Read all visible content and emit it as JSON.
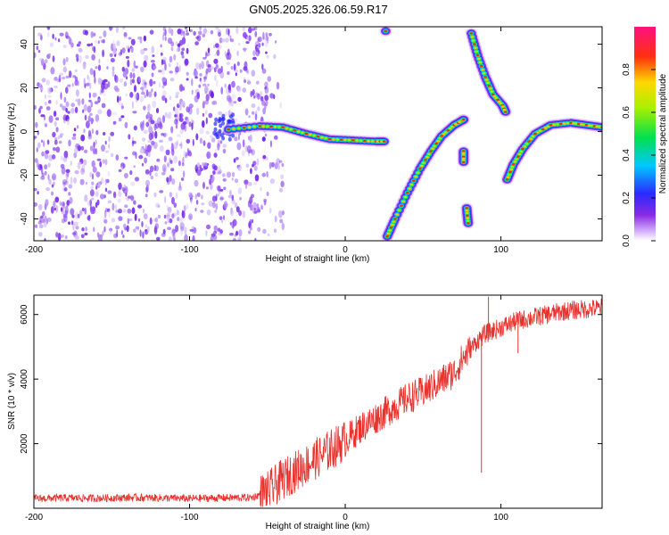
{
  "title": "GN05.2025.326.06.59.R17",
  "colors": {
    "snr_line": "#e8322e",
    "noise_purple": "#7a2cf0",
    "background": "#ffffff"
  },
  "chart_data": [
    {
      "type": "heatmap",
      "name": "spectrogram",
      "xlabel": "Height of straight line (km)",
      "ylabel": "Frequency (Hz)",
      "xlim": [
        -200,
        165
      ],
      "ylim": [
        -50,
        48
      ],
      "x_ticks": [
        -200,
        -100,
        0,
        100
      ],
      "y_ticks": [
        -40,
        -20,
        0,
        20,
        40
      ],
      "grid": false,
      "colorbar": {
        "label": "Normalized spectral amplitude",
        "range": [
          0.0,
          1.0
        ],
        "ticks": [
          "0.0",
          "0.2",
          "0.4",
          "0.6",
          "0.8"
        ],
        "colormap": "rainbow (purple-blue-cyan-green-yellow-red-magenta)"
      },
      "noise_region_x": [
        -200,
        -50
      ],
      "traces": [
        {
          "name": "main-trace",
          "points": [
            [
              -75,
              1
            ],
            [
              -55,
              2.5
            ],
            [
              -40,
              2
            ],
            [
              -25,
              -1
            ],
            [
              -10,
              -3.5
            ],
            [
              5,
              -4
            ],
            [
              20,
              -4.5
            ],
            [
              25,
              -4.5
            ]
          ]
        },
        {
          "name": "rising-arc",
          "points": [
            [
              27,
              -48
            ],
            [
              32,
              -40
            ],
            [
              40,
              -28
            ],
            [
              48,
              -17
            ],
            [
              55,
              -9
            ],
            [
              62,
              -2
            ],
            [
              70,
              3
            ],
            [
              75,
              5
            ],
            [
              76,
              5.5
            ]
          ]
        },
        {
          "name": "upper-descending",
          "points": [
            [
              81,
              45
            ],
            [
              85,
              35
            ],
            [
              90,
              25
            ],
            [
              95,
              17
            ],
            [
              101,
              12
            ],
            [
              103,
              9
            ]
          ]
        },
        {
          "name": "recovery-arc",
          "points": [
            [
              104,
              -22
            ],
            [
              108,
              -15
            ],
            [
              114,
              -8
            ],
            [
              122,
              -1
            ],
            [
              132,
              3
            ],
            [
              145,
              4
            ],
            [
              155,
              3
            ],
            [
              165,
              2
            ]
          ]
        },
        {
          "name": "blob-top",
          "points": [
            [
              26,
              46
            ]
          ]
        },
        {
          "name": "blob-a",
          "points": [
            [
              76,
              -9
            ],
            [
              76,
              -14
            ]
          ]
        },
        {
          "name": "blob-b",
          "points": [
            [
              78,
              -35
            ],
            [
              79,
              -42
            ]
          ]
        }
      ]
    },
    {
      "type": "line",
      "name": "snr",
      "xlabel": "Height of straight line (km)",
      "ylabel": "SNR (10 * v/v)",
      "xlim": [
        -200,
        165
      ],
      "ylim": [
        0,
        6600
      ],
      "x_ticks": [
        -200,
        -100,
        0,
        100
      ],
      "y_ticks": [
        2000,
        4000,
        6000
      ],
      "grid": false,
      "series": [
        {
          "x": [
            -200,
            -180,
            -160,
            -140,
            -120,
            -100,
            -80,
            -60,
            -50,
            -40,
            -30,
            -20,
            -10,
            0,
            10,
            20,
            30,
            40,
            50,
            60,
            70,
            75,
            80,
            85,
            90,
            100,
            110,
            120,
            130,
            140,
            150,
            165
          ],
          "y": [
            300,
            320,
            310,
            330,
            320,
            300,
            320,
            330,
            500,
            900,
            1200,
            1500,
            1800,
            2100,
            2500,
            2800,
            3100,
            3400,
            3600,
            3900,
            4200,
            4600,
            4900,
            5200,
            5400,
            5600,
            5800,
            5900,
            6000,
            6100,
            6150,
            6200
          ]
        }
      ],
      "spikes": [
        {
          "x": 87.5,
          "y": 1100
        },
        {
          "x": 92,
          "y": 6550
        },
        {
          "x": 111,
          "y": 4800
        }
      ]
    }
  ]
}
